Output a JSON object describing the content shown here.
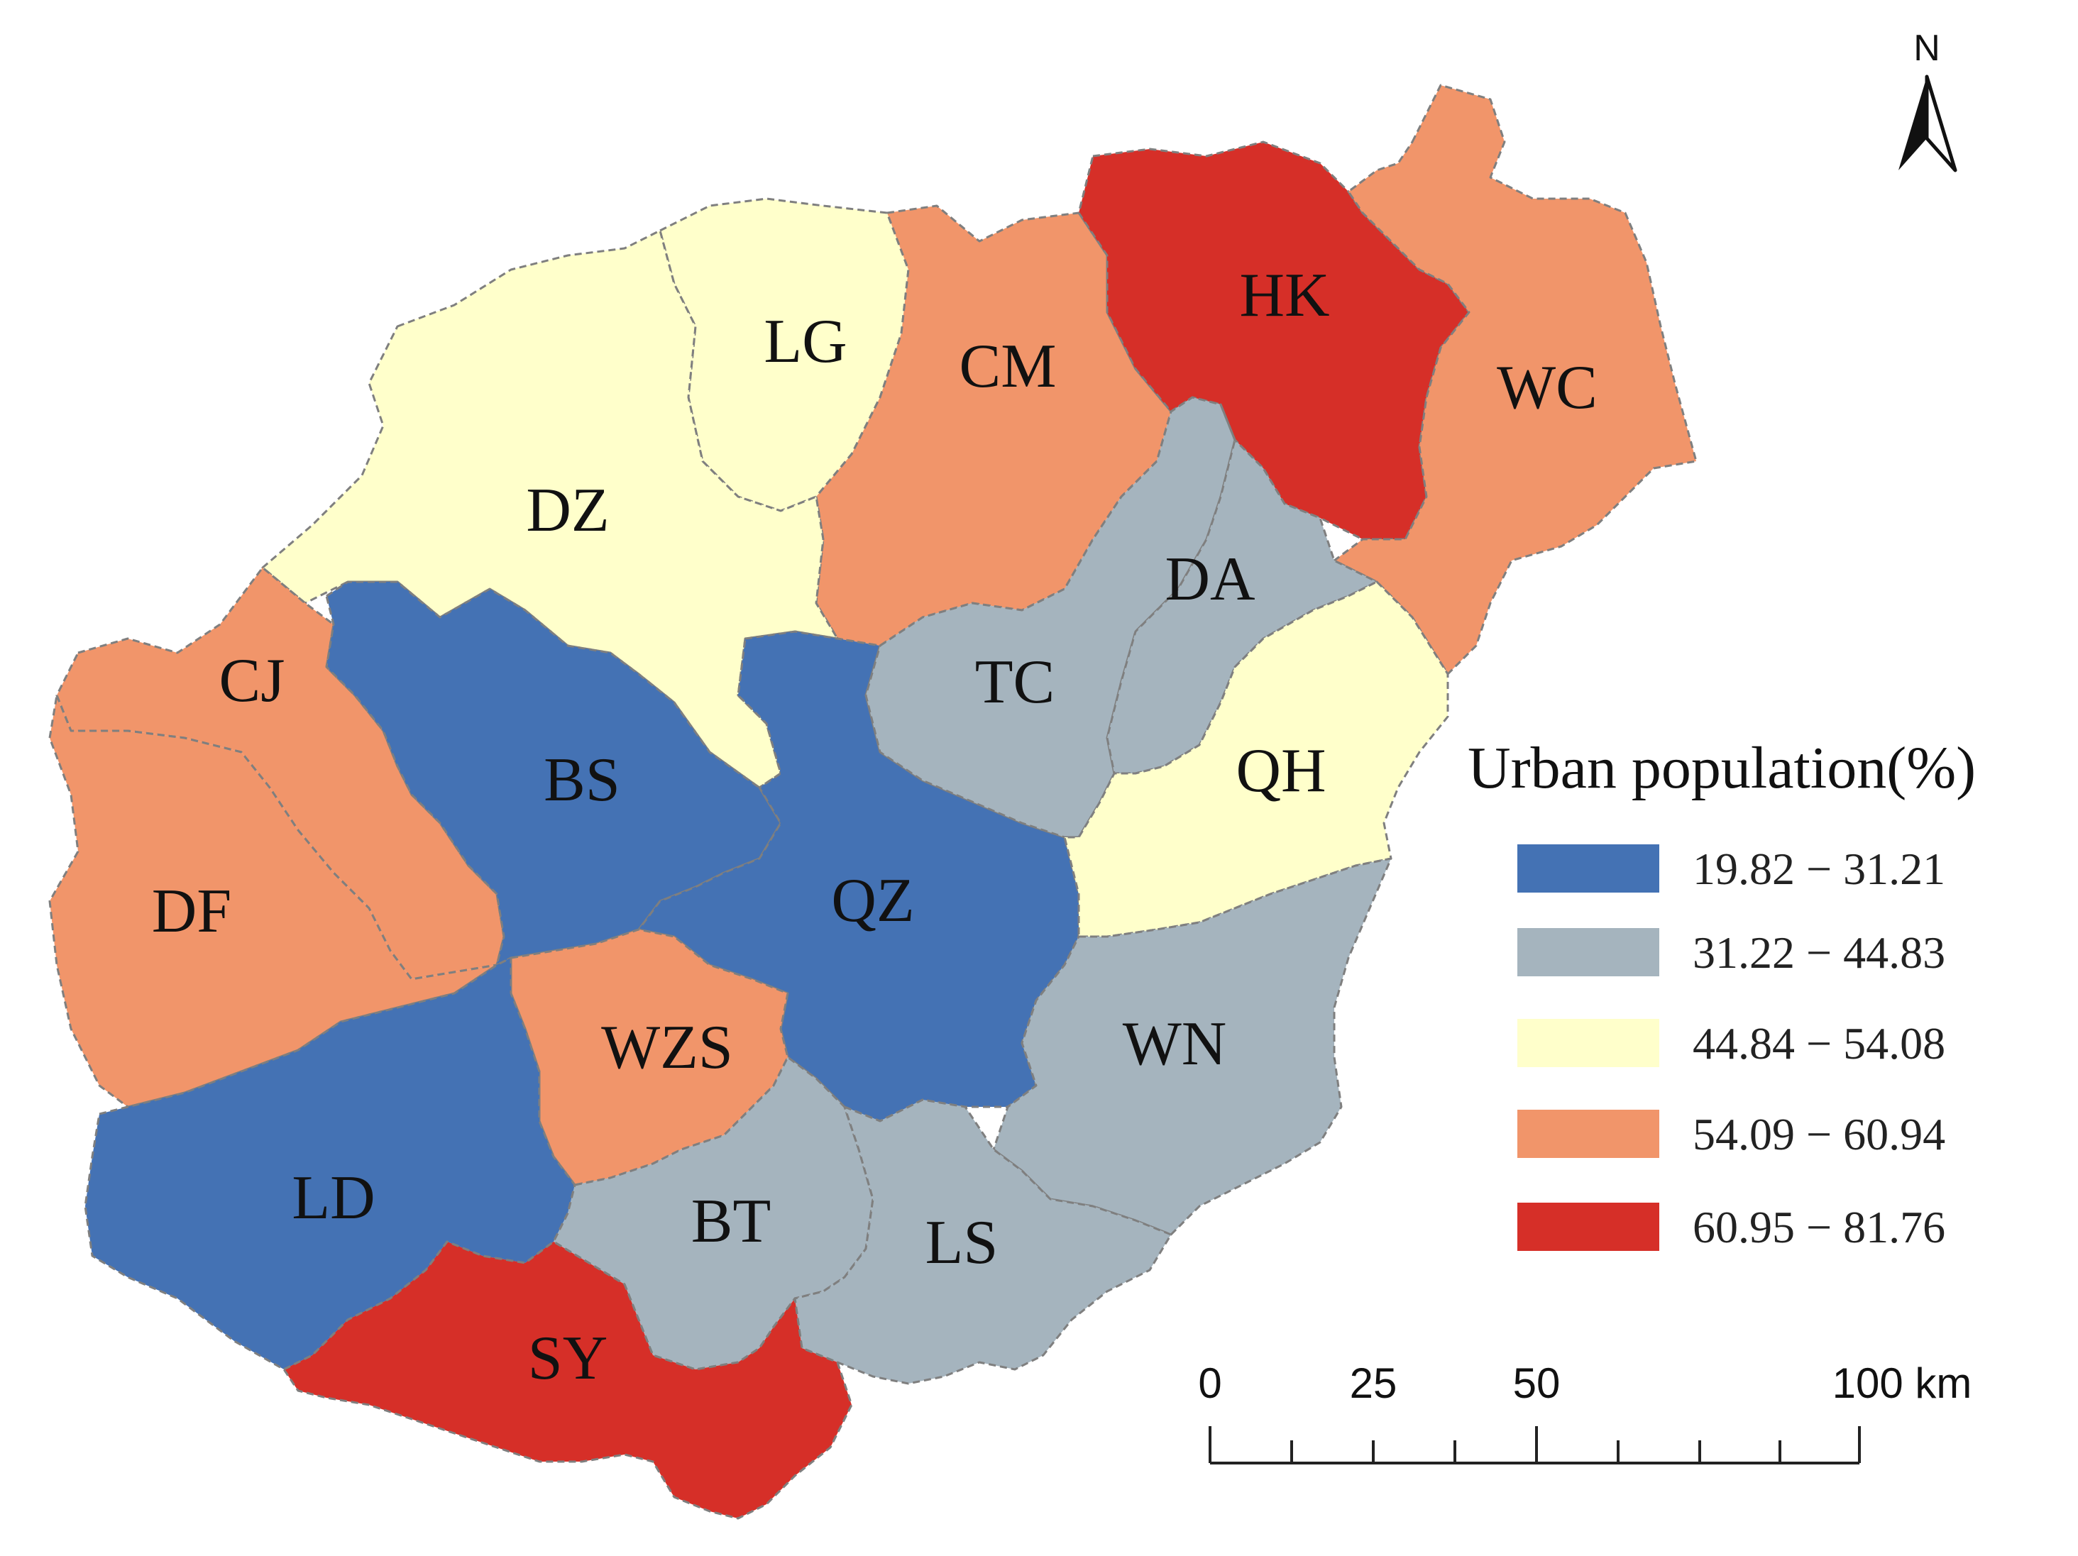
{
  "map": {
    "north_label": "N",
    "colors": {
      "blue": "#4472b4",
      "grey": "#a5b4be",
      "yellow": "#ffffcb",
      "orange": "#f1956a",
      "red": "#d62f28"
    },
    "regions": [
      {
        "code": "LG",
        "class": 2
      },
      {
        "code": "CM",
        "class": 3
      },
      {
        "code": "HK",
        "class": 4
      },
      {
        "code": "WC",
        "class": 3
      },
      {
        "code": "DZ",
        "class": 2
      },
      {
        "code": "DA",
        "class": 1
      },
      {
        "code": "CJ",
        "class": 3
      },
      {
        "code": "TC",
        "class": 1
      },
      {
        "code": "BS",
        "class": 0
      },
      {
        "code": "QH",
        "class": 2
      },
      {
        "code": "QZ",
        "class": 0
      },
      {
        "code": "DF",
        "class": 3
      },
      {
        "code": "WZS",
        "class": 3
      },
      {
        "code": "WN",
        "class": 1
      },
      {
        "code": "LD",
        "class": 0
      },
      {
        "code": "BT",
        "class": 1
      },
      {
        "code": "LS",
        "class": 1
      },
      {
        "code": "SY",
        "class": 4
      }
    ]
  },
  "legend": {
    "title": "Urban population(%)",
    "items": [
      {
        "label": "19.82 − 31.21",
        "color": "#4472b4"
      },
      {
        "label": "31.22 − 44.83",
        "color": "#a5b4be"
      },
      {
        "label": "44.84 − 54.08",
        "color": "#ffffcb"
      },
      {
        "label": "54.09 − 60.94",
        "color": "#f1956a"
      },
      {
        "label": "60.95 − 81.76",
        "color": "#d62f28"
      }
    ]
  },
  "scale_bar": {
    "labels": [
      "0",
      "25",
      "50",
      "100 km"
    ],
    "values_km": [
      0,
      25,
      50,
      100
    ]
  }
}
